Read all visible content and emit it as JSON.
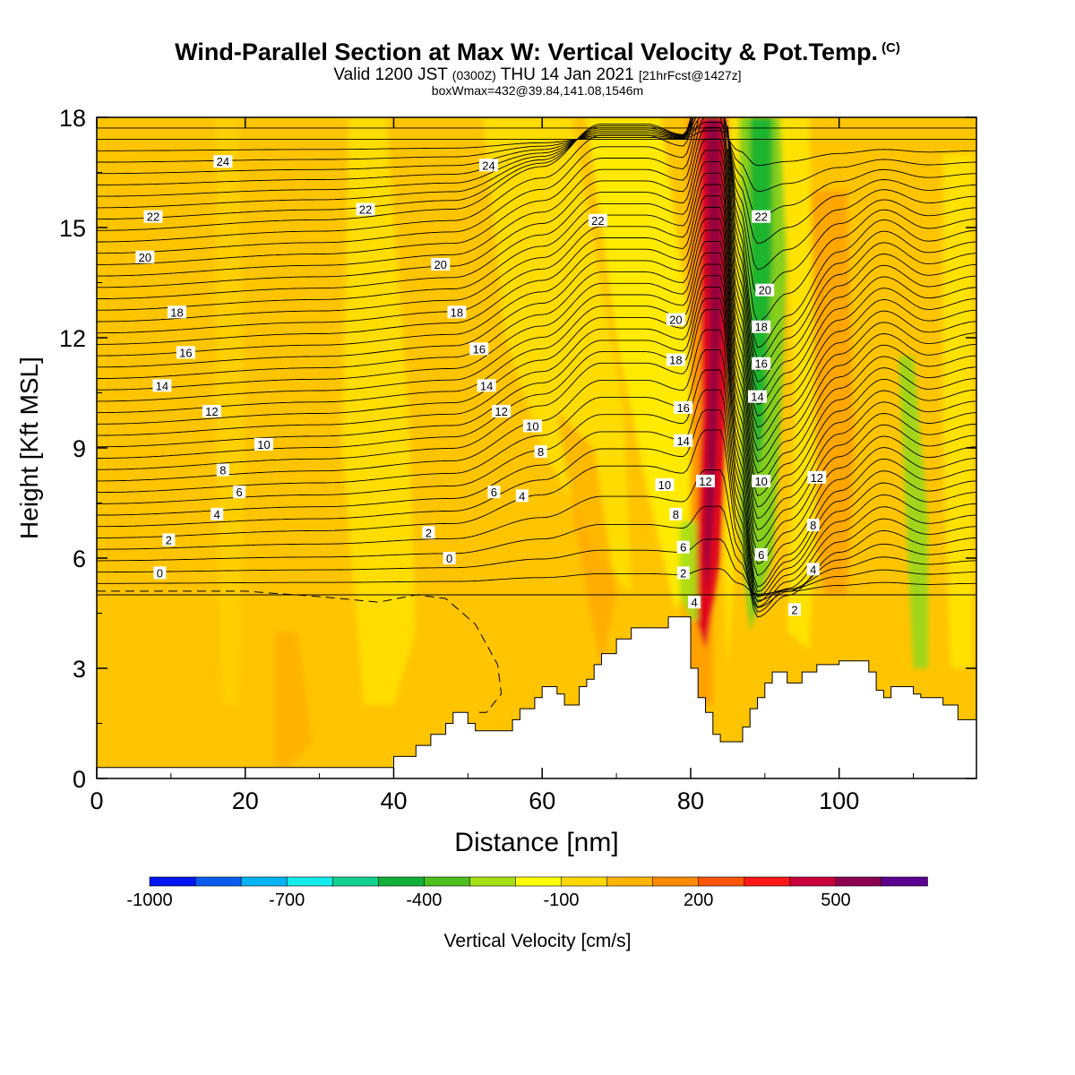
{
  "title": {
    "main": "Wind-Parallel Section at Max W: Vertical Velocity & Pot.Temp.",
    "main_mark": "(C)",
    "valid_a": "Valid 1200 JST",
    "valid_b": "(0300Z)",
    "valid_c": "THU 14 Jan 2021",
    "valid_d": "[21hrFcst@1427z]",
    "box": "boxWmax=432@39.84,141.08,1546m"
  },
  "chart_data": {
    "type": "heatmap",
    "xlabel": "Distance [nm]",
    "ylabel": "Height [Kft MSL]",
    "xlim": [
      0,
      118.5
    ],
    "ylim": [
      0,
      18
    ],
    "x_ticks": [
      0,
      20,
      40,
      60,
      80,
      100
    ],
    "y_ticks": [
      0,
      3,
      6,
      9,
      12,
      15,
      18
    ],
    "colorbar": {
      "label": "Vertical Velocity [cm/s]",
      "tick_labels": [
        "-1000",
        "-700",
        "-400",
        "-100",
        "200",
        "500"
      ],
      "tick_values": [
        -1000,
        -700,
        -400,
        -100,
        200,
        500
      ],
      "colors": [
        "#0015f5",
        "#0a5cf0",
        "#06b4f4",
        "#10ecec",
        "#12d090",
        "#12b038",
        "#4cc01c",
        "#a6e014",
        "#ffff00",
        "#ffd800",
        "#ffb400",
        "#ff8c00",
        "#ff5400",
        "#ff1818",
        "#c8003c",
        "#8c0050",
        "#5a0090"
      ]
    },
    "terrain_profile": [
      [
        0,
        0.3
      ],
      [
        40,
        0.3
      ],
      [
        40,
        0.6
      ],
      [
        43,
        0.6
      ],
      [
        43,
        0.9
      ],
      [
        45,
        0.9
      ],
      [
        45,
        1.2
      ],
      [
        47,
        1.2
      ],
      [
        47,
        1.5
      ],
      [
        48,
        1.5
      ],
      [
        48,
        1.8
      ],
      [
        50,
        1.8
      ],
      [
        50,
        1.5
      ],
      [
        51,
        1.5
      ],
      [
        51,
        1.3
      ],
      [
        56,
        1.3
      ],
      [
        56,
        1.6
      ],
      [
        57,
        1.6
      ],
      [
        57,
        1.9
      ],
      [
        59,
        1.9
      ],
      [
        59,
        2.2
      ],
      [
        60,
        2.2
      ],
      [
        60,
        2.5
      ],
      [
        62,
        2.5
      ],
      [
        62,
        2.3
      ],
      [
        63,
        2.3
      ],
      [
        63,
        2.0
      ],
      [
        65,
        2.0
      ],
      [
        65,
        2.5
      ],
      [
        66,
        2.5
      ],
      [
        66,
        2.7
      ],
      [
        67,
        2.7
      ],
      [
        67,
        3.1
      ],
      [
        68,
        3.1
      ],
      [
        68,
        3.4
      ],
      [
        70,
        3.4
      ],
      [
        70,
        3.8
      ],
      [
        72,
        3.8
      ],
      [
        72,
        4.1
      ],
      [
        77,
        4.1
      ],
      [
        77,
        4.4
      ],
      [
        80,
        4.4
      ],
      [
        80,
        3.0
      ],
      [
        81,
        3.0
      ],
      [
        81,
        2.2
      ],
      [
        82,
        2.2
      ],
      [
        82,
        1.8
      ],
      [
        83,
        1.8
      ],
      [
        83,
        1.2
      ],
      [
        84,
        1.2
      ],
      [
        84,
        1.0
      ],
      [
        87,
        1.0
      ],
      [
        87,
        1.4
      ],
      [
        88,
        1.4
      ],
      [
        88,
        1.9
      ],
      [
        89,
        1.9
      ],
      [
        89,
        2.2
      ],
      [
        90,
        2.2
      ],
      [
        90,
        2.6
      ],
      [
        91,
        2.6
      ],
      [
        91,
        2.9
      ],
      [
        93,
        2.9
      ],
      [
        93,
        2.6
      ],
      [
        95,
        2.6
      ],
      [
        95,
        2.9
      ],
      [
        97,
        2.9
      ],
      [
        97,
        3.1
      ],
      [
        100,
        3.1
      ],
      [
        100,
        3.2
      ],
      [
        104,
        3.2
      ],
      [
        104,
        2.9
      ],
      [
        105,
        2.9
      ],
      [
        105,
        2.4
      ],
      [
        106,
        2.4
      ],
      [
        106,
        2.2
      ],
      [
        107,
        2.2
      ],
      [
        107,
        2.5
      ],
      [
        110,
        2.5
      ],
      [
        110,
        2.3
      ],
      [
        111,
        2.3
      ],
      [
        111,
        2.2
      ],
      [
        114,
        2.2
      ],
      [
        114,
        2.0
      ],
      [
        116,
        2.0
      ],
      [
        116,
        1.6
      ],
      [
        118.5,
        1.6
      ]
    ],
    "theta_contours": {
      "label_values": [
        0,
        2,
        4,
        6,
        8,
        10,
        12,
        14,
        16,
        18,
        20,
        22,
        24
      ],
      "labels": [
        {
          "text": "0",
          "x": 8.5,
          "y": 5.6
        },
        {
          "text": "2",
          "x": 9.7,
          "y": 6.5
        },
        {
          "text": "4",
          "x": 16.2,
          "y": 7.2
        },
        {
          "text": "6",
          "x": 19.2,
          "y": 7.8
        },
        {
          "text": "8",
          "x": 17.0,
          "y": 8.4
        },
        {
          "text": "10",
          "x": 22.5,
          "y": 9.1
        },
        {
          "text": "12",
          "x": 15.5,
          "y": 10.0
        },
        {
          "text": "14",
          "x": 8.8,
          "y": 10.7
        },
        {
          "text": "16",
          "x": 12.0,
          "y": 11.6
        },
        {
          "text": "18",
          "x": 10.8,
          "y": 12.7
        },
        {
          "text": "20",
          "x": 6.5,
          "y": 14.2
        },
        {
          "text": "22",
          "x": 7.6,
          "y": 15.3
        },
        {
          "text": "24",
          "x": 17.0,
          "y": 16.8
        },
        {
          "text": "0",
          "x": 47.5,
          "y": 6.0
        },
        {
          "text": "2",
          "x": 44.7,
          "y": 6.7
        },
        {
          "text": "6",
          "x": 53.5,
          "y": 7.8
        },
        {
          "text": "4",
          "x": 57.3,
          "y": 7.7
        },
        {
          "text": "8",
          "x": 59.8,
          "y": 8.9
        },
        {
          "text": "10",
          "x": 58.7,
          "y": 9.6
        },
        {
          "text": "12",
          "x": 54.5,
          "y": 10.0
        },
        {
          "text": "14",
          "x": 52.5,
          "y": 10.7
        },
        {
          "text": "16",
          "x": 51.5,
          "y": 11.7
        },
        {
          "text": "18",
          "x": 48.5,
          "y": 12.7
        },
        {
          "text": "20",
          "x": 46.3,
          "y": 14.0
        },
        {
          "text": "22",
          "x": 36.2,
          "y": 15.5
        },
        {
          "text": "24",
          "x": 52.8,
          "y": 16.7
        },
        {
          "text": "22",
          "x": 67.5,
          "y": 15.2
        },
        {
          "text": "20",
          "x": 78.0,
          "y": 12.5
        },
        {
          "text": "18",
          "x": 78.0,
          "y": 11.4
        },
        {
          "text": "16",
          "x": 79.0,
          "y": 10.1
        },
        {
          "text": "14",
          "x": 79.0,
          "y": 9.2
        },
        {
          "text": "12",
          "x": 82.0,
          "y": 8.1
        },
        {
          "text": "10",
          "x": 76.5,
          "y": 8.0
        },
        {
          "text": "8",
          "x": 78.0,
          "y": 7.2
        },
        {
          "text": "6",
          "x": 79.0,
          "y": 6.3
        },
        {
          "text": "2",
          "x": 79.0,
          "y": 5.6
        },
        {
          "text": "4",
          "x": 80.5,
          "y": 4.8
        },
        {
          "text": "22",
          "x": 89.5,
          "y": 15.3
        },
        {
          "text": "20",
          "x": 90.0,
          "y": 13.3
        },
        {
          "text": "18",
          "x": 89.5,
          "y": 12.3
        },
        {
          "text": "16",
          "x": 89.5,
          "y": 11.3
        },
        {
          "text": "14",
          "x": 89.0,
          "y": 10.4
        },
        {
          "text": "10",
          "x": 89.5,
          "y": 8.1
        },
        {
          "text": "12",
          "x": 97.0,
          "y": 8.2
        },
        {
          "text": "8",
          "x": 96.5,
          "y": 6.9
        },
        {
          "text": "6",
          "x": 89.5,
          "y": 6.1
        },
        {
          "text": "4",
          "x": 96.5,
          "y": 5.7
        },
        {
          "text": "2",
          "x": 94.0,
          "y": 4.6
        }
      ]
    },
    "zero_w_contour_style": "dashed"
  }
}
